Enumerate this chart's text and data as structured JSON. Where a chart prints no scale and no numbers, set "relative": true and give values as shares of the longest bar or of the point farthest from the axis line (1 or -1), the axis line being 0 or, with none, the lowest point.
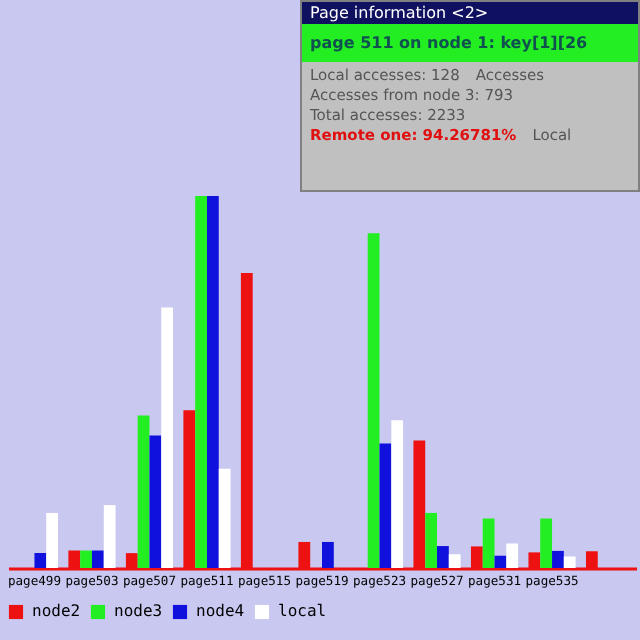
{
  "chart_data": {
    "type": "bar",
    "relative": true,
    "categories": [
      "page499",
      "page503",
      "page507",
      "page511",
      "page515",
      "page519",
      "page523",
      "page527",
      "page531",
      "page535",
      null
    ],
    "series": [
      {
        "name": "node2",
        "color": "#ee1111",
        "values": [
          null,
          0.047,
          0.04,
          0.424,
          0.793,
          0.07,
          0,
          0.343,
          0.058,
          0.042,
          0.045
        ]
      },
      {
        "name": "node3",
        "color": "#22ee22",
        "values": [
          null,
          0.047,
          0.41,
          1,
          0,
          0,
          0.9,
          0.148,
          0.133,
          0.133,
          null
        ]
      },
      {
        "name": "node4",
        "color": "#1111dd",
        "values": [
          0.04,
          0.047,
          0.356,
          1,
          0,
          0.07,
          0.335,
          0.059,
          0.033,
          0.046,
          null
        ]
      },
      {
        "name": "local",
        "color": "#ffffff",
        "values": [
          0.148,
          0.169,
          0.7,
          0.267,
          0,
          0,
          0.397,
          0.037,
          0.066,
          0.031,
          null
        ]
      }
    ],
    "legend": "bottom",
    "grid": false,
    "annotations": [
      "Page information <2>",
      "page 511 on node 1: key[1][26",
      "Local accesses: 128",
      "Accesses",
      "Accesses from node 3: 793",
      "Total accesses: 2233",
      "Remote one: 94.26781%",
      "Local"
    ]
  }
}
